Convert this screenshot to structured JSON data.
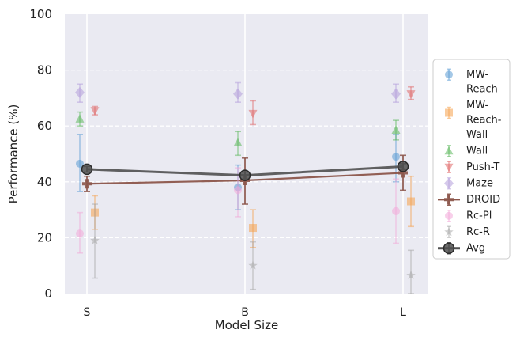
{
  "chart_data": {
    "type": "line",
    "xlabel": "Model Size",
    "ylabel": "Performance (%)",
    "categories": [
      "S",
      "B",
      "L"
    ],
    "ylim": [
      0,
      100
    ],
    "yticks": [
      0,
      20,
      40,
      60,
      80,
      100
    ],
    "grid": true,
    "legend_position": "right",
    "series": [
      {
        "name": "MW-Reach",
        "legend_lines": [
          "MW-",
          "Reach"
        ],
        "color": "#5a9bd4",
        "marker": "circle",
        "connected": false,
        "values": [
          46.5,
          38,
          49
        ],
        "err_low": [
          36.5,
          30,
          40
        ],
        "err_high": [
          57,
          46,
          57
        ]
      },
      {
        "name": "MW-Reach-Wall",
        "legend_lines": [
          "MW-",
          "Reach-",
          "Wall"
        ],
        "color": "#f5a04a",
        "marker": "square",
        "connected": false,
        "values": [
          29,
          23.5,
          33
        ],
        "err_low": [
          23,
          16.5,
          24
        ],
        "err_high": [
          35,
          30,
          42
        ]
      },
      {
        "name": "Wall",
        "legend_lines": [
          "Wall"
        ],
        "color": "#5cb85c",
        "marker": "triangle-up",
        "connected": false,
        "values": [
          62.5,
          54,
          58.5
        ],
        "err_low": [
          60,
          49.5,
          55
        ],
        "err_high": [
          65,
          58,
          62
        ]
      },
      {
        "name": "Push-T",
        "legend_lines": [
          "Push-T"
        ],
        "color": "#e06666",
        "marker": "triangle-down",
        "connected": false,
        "values": [
          65.5,
          64.5,
          71.5
        ],
        "err_low": [
          64,
          60.5,
          69.5
        ],
        "err_high": [
          67,
          69,
          74
        ]
      },
      {
        "name": "Maze",
        "legend_lines": [
          "Maze"
        ],
        "color": "#b39ddb",
        "marker": "diamond",
        "connected": false,
        "values": [
          72,
          71.5,
          71.5
        ],
        "err_low": [
          68.5,
          68.5,
          68.5
        ],
        "err_high": [
          75,
          75.5,
          75
        ]
      },
      {
        "name": "DROID",
        "legend_lines": [
          "DROID"
        ],
        "color": "#8c564b",
        "marker": "plus",
        "connected": true,
        "values": [
          39.3,
          40.5,
          43.2
        ],
        "err_low": [
          36.5,
          32,
          37
        ],
        "err_high": [
          42,
          48.5,
          49.5
        ]
      },
      {
        "name": "Rc-Pl",
        "legend_lines": [
          "Rc-Pl"
        ],
        "color": "#f2a7d8",
        "marker": "circle",
        "connected": false,
        "values": [
          21.5,
          37,
          29.5
        ],
        "err_low": [
          14.5,
          27.5,
          18
        ],
        "err_high": [
          29,
          45,
          41
        ]
      },
      {
        "name": "Rc-R",
        "legend_lines": [
          "Rc-R"
        ],
        "color": "#a8a8a8",
        "marker": "star",
        "connected": false,
        "values": [
          19,
          10,
          6.5
        ],
        "err_low": [
          5.5,
          1.5,
          0
        ],
        "err_high": [
          32,
          18.5,
          15.5
        ]
      },
      {
        "name": "Avg",
        "legend_lines": [
          "Avg"
        ],
        "color": "#505050",
        "marker": "circle-big",
        "connected": true,
        "values": [
          44.5,
          42.3,
          45.5
        ],
        "err_low": [
          43.5,
          41,
          44.5
        ],
        "err_high": [
          45.5,
          43.5,
          46.5
        ]
      }
    ]
  }
}
